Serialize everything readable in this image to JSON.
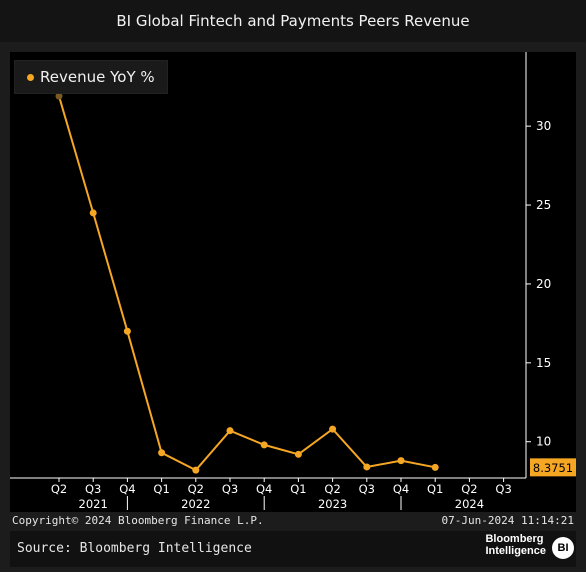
{
  "title": "BI Global Fintech and Payments Peers Revenue",
  "legend_label": "Revenue YoY %",
  "copyright": "Copyright© 2024 Bloomberg Finance L.P.",
  "date_stamp": "07-Jun-2024 11:14:21",
  "source": "Source: Bloomberg Intelligence",
  "brand": {
    "line1": "Bloomberg",
    "line2": "Intelligence",
    "badge": "BI"
  },
  "colors": {
    "series": "#f5a623",
    "background": "#000000",
    "axis": "#ffffff"
  },
  "chart_data": {
    "type": "line",
    "title": "BI Global Fintech and Payments Peers Revenue",
    "xlabel": "",
    "ylabel": "",
    "ylim": [
      7.7,
      34.7
    ],
    "y_ticks": [
      10,
      15,
      20,
      25,
      30
    ],
    "y_axis_side": "right",
    "grid": false,
    "legend_position": "top-left",
    "categories": [
      "Q2",
      "Q3",
      "Q4",
      "Q1",
      "Q2",
      "Q3",
      "Q4",
      "Q1",
      "Q2",
      "Q3",
      "Q4",
      "Q1",
      "Q2",
      "Q3"
    ],
    "year_labels": [
      {
        "label": "2021",
        "center_index": 1
      },
      {
        "label": "2022",
        "center_index": 4
      },
      {
        "label": "2023",
        "center_index": 8
      },
      {
        "label": "2024",
        "center_index": 12
      }
    ],
    "year_separators_after_index": [
      2,
      6,
      10
    ],
    "series": [
      {
        "name": "Revenue YoY %",
        "values": [
          31.9,
          24.5,
          17.0,
          9.3,
          8.2,
          10.7,
          9.8,
          9.2,
          10.8,
          8.4,
          8.8,
          8.3751,
          null,
          null
        ]
      }
    ],
    "last_value_label": "8.3751"
  }
}
